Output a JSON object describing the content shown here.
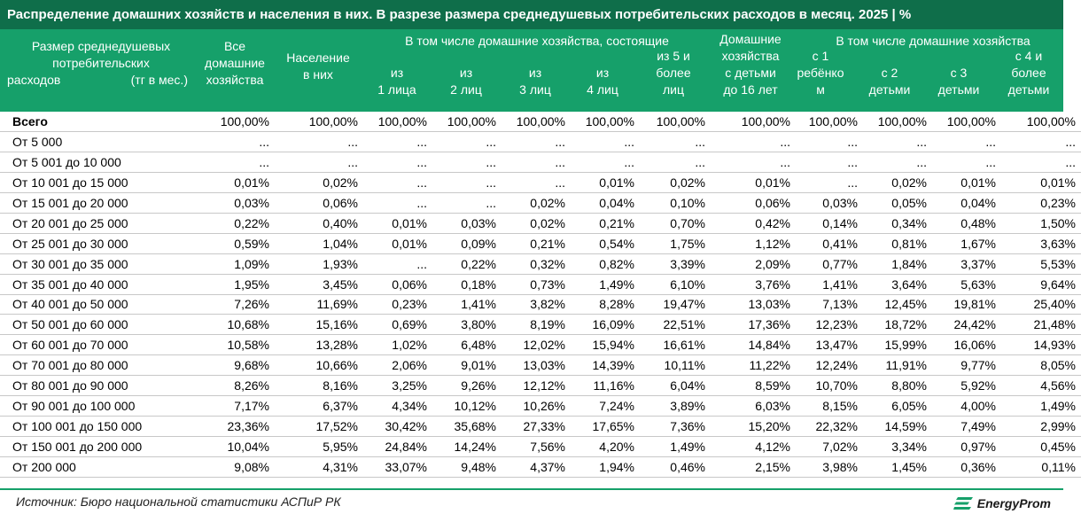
{
  "title": "Распределение домашних хозяйств и населения в них. В разрезе размера среднедушевых потребительских расходов в месяц. 2025 | %",
  "header": {
    "col0": [
      "Размер среднедушевых",
      "потребительских",
      "расходов",
      "(тг в мес.)"
    ],
    "col1": [
      "Все",
      "домашние",
      "хозяйства"
    ],
    "col2": [
      "Население",
      "в них"
    ],
    "group1": "В том числе домашние хозяйства, состоящие",
    "col3": [
      "из",
      "1 лица"
    ],
    "col4": [
      "из",
      "2 лиц"
    ],
    "col5": [
      "из",
      "3 лиц"
    ],
    "col6": [
      "из",
      "4 лиц"
    ],
    "col7": [
      "из 5 и",
      "более",
      "лиц"
    ],
    "col8": [
      "Домашние",
      "хозяйства",
      "с детьми",
      "до 16 лет"
    ],
    "group2": "В том числе домашние хозяйства",
    "col9": [
      "с 1",
      "ребёнко",
      "м"
    ],
    "col10": [
      "с 2",
      "детьми"
    ],
    "col11": [
      "с 3",
      "детьми"
    ],
    "col12": [
      "с 4 и",
      "более",
      "детьми"
    ]
  },
  "rows": [
    {
      "label": "Всего",
      "values": [
        "100,00%",
        "100,00%",
        "100,00%",
        "100,00%",
        "100,00%",
        "100,00%",
        "100,00%",
        "100,00%",
        "100,00%",
        "100,00%",
        "100,00%",
        "100,00%"
      ]
    },
    {
      "label": "От 5 000",
      "values": [
        "...",
        "...",
        "...",
        "...",
        "...",
        "...",
        "...",
        "...",
        "...",
        "...",
        "...",
        "..."
      ]
    },
    {
      "label": "От 5 001 до 10 000",
      "values": [
        "...",
        "...",
        "...",
        "...",
        "...",
        "...",
        "...",
        "...",
        "...",
        "...",
        "...",
        "..."
      ]
    },
    {
      "label": "От 10 001 до 15 000",
      "values": [
        "0,01%",
        "0,02%",
        "...",
        "...",
        "...",
        "0,01%",
        "0,02%",
        "0,01%",
        "...",
        "0,02%",
        "0,01%",
        "0,01%"
      ]
    },
    {
      "label": "От 15 001 до 20 000",
      "values": [
        "0,03%",
        "0,06%",
        "...",
        "...",
        "0,02%",
        "0,04%",
        "0,10%",
        "0,06%",
        "0,03%",
        "0,05%",
        "0,04%",
        "0,23%"
      ]
    },
    {
      "label": "От 20 001 до 25 000",
      "values": [
        "0,22%",
        "0,40%",
        "0,01%",
        "0,03%",
        "0,02%",
        "0,21%",
        "0,70%",
        "0,42%",
        "0,14%",
        "0,34%",
        "0,48%",
        "1,50%"
      ]
    },
    {
      "label": "От 25 001 до 30 000",
      "values": [
        "0,59%",
        "1,04%",
        "0,01%",
        "0,09%",
        "0,21%",
        "0,54%",
        "1,75%",
        "1,12%",
        "0,41%",
        "0,81%",
        "1,67%",
        "3,63%"
      ]
    },
    {
      "label": "От 30 001 до 35 000",
      "values": [
        "1,09%",
        "1,93%",
        "...",
        "0,22%",
        "0,32%",
        "0,82%",
        "3,39%",
        "2,09%",
        "0,77%",
        "1,84%",
        "3,37%",
        "5,53%"
      ]
    },
    {
      "label": "От 35 001 до 40 000",
      "values": [
        "1,95%",
        "3,45%",
        "0,06%",
        "0,18%",
        "0,73%",
        "1,49%",
        "6,10%",
        "3,76%",
        "1,41%",
        "3,64%",
        "5,63%",
        "9,64%"
      ]
    },
    {
      "label": "От 40 001 до 50 000",
      "values": [
        "7,26%",
        "11,69%",
        "0,23%",
        "1,41%",
        "3,82%",
        "8,28%",
        "19,47%",
        "13,03%",
        "7,13%",
        "12,45%",
        "19,81%",
        "25,40%"
      ]
    },
    {
      "label": "От 50 001 до 60 000",
      "values": [
        "10,68%",
        "15,16%",
        "0,69%",
        "3,80%",
        "8,19%",
        "16,09%",
        "22,51%",
        "17,36%",
        "12,23%",
        "18,72%",
        "24,42%",
        "21,48%"
      ]
    },
    {
      "label": "От 60 001 до 70 000",
      "values": [
        "10,58%",
        "13,28%",
        "1,02%",
        "6,48%",
        "12,02%",
        "15,94%",
        "16,61%",
        "14,84%",
        "13,47%",
        "15,99%",
        "16,06%",
        "14,93%"
      ]
    },
    {
      "label": "От 70 001 до 80 000",
      "values": [
        "9,68%",
        "10,66%",
        "2,06%",
        "9,01%",
        "13,03%",
        "14,39%",
        "10,11%",
        "11,22%",
        "12,24%",
        "11,91%",
        "9,77%",
        "8,05%"
      ]
    },
    {
      "label": "От 80 001 до 90 000",
      "values": [
        "8,26%",
        "8,16%",
        "3,25%",
        "9,26%",
        "12,12%",
        "11,16%",
        "6,04%",
        "8,59%",
        "10,70%",
        "8,80%",
        "5,92%",
        "4,56%"
      ]
    },
    {
      "label": "От 90 001 до 100 000",
      "values": [
        "7,17%",
        "6,37%",
        "4,34%",
        "10,12%",
        "10,26%",
        "7,24%",
        "3,89%",
        "6,03%",
        "8,15%",
        "6,05%",
        "4,00%",
        "1,49%"
      ]
    },
    {
      "label": "От 100 001 до 150 000",
      "values": [
        "23,36%",
        "17,52%",
        "30,42%",
        "35,68%",
        "27,33%",
        "17,65%",
        "7,36%",
        "15,20%",
        "22,32%",
        "14,59%",
        "7,49%",
        "2,99%"
      ]
    },
    {
      "label": "От 150 001 до 200 000",
      "values": [
        "10,04%",
        "5,95%",
        "24,84%",
        "14,24%",
        "7,56%",
        "4,20%",
        "1,49%",
        "4,12%",
        "7,02%",
        "3,34%",
        "0,97%",
        "0,45%"
      ]
    },
    {
      "label": "От 200 000",
      "values": [
        "9,08%",
        "4,31%",
        "33,07%",
        "9,48%",
        "4,37%",
        "1,94%",
        "0,46%",
        "2,15%",
        "3,98%",
        "1,45%",
        "0,36%",
        "0,11%"
      ]
    }
  ],
  "source": "Источник: Бюро национальной статистики АСПиР РК",
  "logo": {
    "text": "EnergyProm",
    "icon": "energyprom-logo-icon"
  },
  "colors": {
    "title_bg": "#0f6e4a",
    "header_bg": "#16a06a",
    "header_text": "#ffffff",
    "row_border": "#c8c8c8"
  }
}
